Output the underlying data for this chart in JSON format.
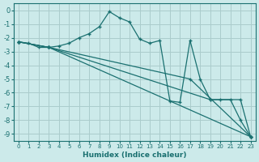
{
  "xlabel": "Humidex (Indice chaleur)",
  "background_color": "#cceaea",
  "grid_color": "#aacccc",
  "line_color": "#1a7070",
  "xlim": [
    -0.5,
    23.5
  ],
  "ylim": [
    -9.5,
    0.5
  ],
  "yticks": [
    0,
    -1,
    -2,
    -3,
    -4,
    -5,
    -6,
    -7,
    -8,
    -9
  ],
  "xticks": [
    0,
    1,
    2,
    3,
    4,
    5,
    6,
    7,
    8,
    9,
    10,
    11,
    12,
    13,
    14,
    15,
    16,
    17,
    18,
    19,
    20,
    21,
    22,
    23
  ],
  "line1_x": [
    0,
    1,
    2,
    3,
    4,
    5,
    6,
    7,
    8,
    9,
    10,
    11,
    12,
    13,
    14,
    15,
    16,
    17,
    18,
    19,
    20,
    21,
    22,
    23
  ],
  "line1_y": [
    -2.3,
    -2.4,
    -2.7,
    -2.7,
    -2.6,
    -2.4,
    -2.0,
    -1.7,
    -1.2,
    -0.1,
    -0.55,
    -0.85,
    -2.1,
    -2.4,
    -2.2,
    -6.6,
    -6.7,
    -2.2,
    -5.0,
    -6.5,
    -6.5,
    -6.5,
    -8.0,
    -9.2
  ],
  "line2_x": [
    0,
    3,
    23
  ],
  "line2_y": [
    -2.3,
    -2.7,
    -9.2
  ],
  "line3_x": [
    0,
    3,
    17,
    23
  ],
  "line3_y": [
    -2.3,
    -2.7,
    -5.0,
    -9.2
  ],
  "line4_x": [
    0,
    3,
    19,
    22,
    23
  ],
  "line4_y": [
    -2.3,
    -2.7,
    -6.5,
    -6.5,
    -9.2
  ]
}
